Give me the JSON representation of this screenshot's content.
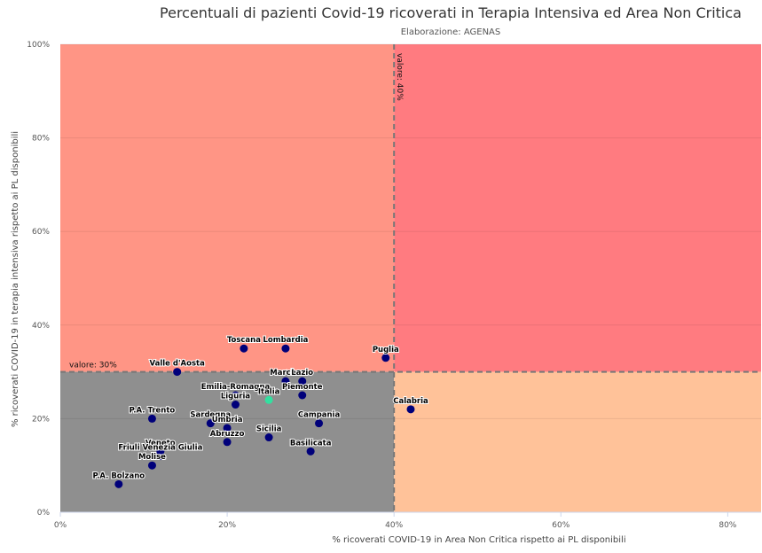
{
  "chart_data": {
    "type": "scatter",
    "title": "Percentuali di pazienti Covid-19 ricoverati in Terapia Intensiva ed Area Non Critica",
    "subtitle": "Elaborazione: AGENAS",
    "xlabel": "% ricoverati COVID-19 in Area Non Critica rispetto ai PL disponibili",
    "ylabel": "% ricoverati COVID-19 in terapia intensiva rispetto ai PL disponibili",
    "xlim": [
      0,
      84
    ],
    "ylim": [
      0,
      100
    ],
    "x_ticks": [
      "0%",
      "20%",
      "40%",
      "60%",
      "80%"
    ],
    "x_tick_values": [
      0,
      20,
      40,
      60,
      80
    ],
    "y_ticks": [
      "0%",
      "20%",
      "40%",
      "60%",
      "80%",
      "100%"
    ],
    "y_tick_values": [
      0,
      20,
      40,
      60,
      80,
      100
    ],
    "grid": true,
    "thresholds": {
      "x": {
        "value": 40,
        "label": "valore: 40%"
      },
      "y": {
        "value": 30,
        "label": "valore: 30%"
      }
    },
    "zones": {
      "bottom_left": "#8f8f8f",
      "top_left": "#ff9585",
      "top_right": "#ff7b80",
      "bottom_right": "#ffc299"
    },
    "point_color": "#00007a",
    "highlight_color": "#33e0a0",
    "points": [
      {
        "name": "Toscana",
        "x": 22,
        "y": 35
      },
      {
        "name": "Lombardia",
        "x": 27,
        "y": 35
      },
      {
        "name": "Puglia",
        "x": 39,
        "y": 33
      },
      {
        "name": "Valle d'Aosta",
        "x": 14,
        "y": 30
      },
      {
        "name": "Marche",
        "x": 27,
        "y": 28
      },
      {
        "name": "Lazio",
        "x": 29,
        "y": 28
      },
      {
        "name": "Piemonte",
        "x": 29,
        "y": 25
      },
      {
        "name": "Emilia-Romagna",
        "x": 21,
        "y": 25
      },
      {
        "name": "Italia",
        "x": 25,
        "y": 24,
        "highlight": true
      },
      {
        "name": "Liguria",
        "x": 21,
        "y": 23
      },
      {
        "name": "Calabria",
        "x": 42,
        "y": 22
      },
      {
        "name": "P.A. Trento",
        "x": 11,
        "y": 20
      },
      {
        "name": "Sardegna",
        "x": 18,
        "y": 19
      },
      {
        "name": "Umbria",
        "x": 20,
        "y": 18
      },
      {
        "name": "Campania",
        "x": 31,
        "y": 19
      },
      {
        "name": "Sicilia",
        "x": 25,
        "y": 16
      },
      {
        "name": "Abruzzo",
        "x": 20,
        "y": 15
      },
      {
        "name": "Basilicata",
        "x": 30,
        "y": 13
      },
      {
        "name": "Veneto",
        "x": 12,
        "y": 13
      },
      {
        "name": "Friuli Venezia Giulia",
        "x": 12,
        "y": 12
      },
      {
        "name": "Molise",
        "x": 11,
        "y": 10
      },
      {
        "name": "P.A. Bolzano",
        "x": 7,
        "y": 6
      }
    ]
  }
}
